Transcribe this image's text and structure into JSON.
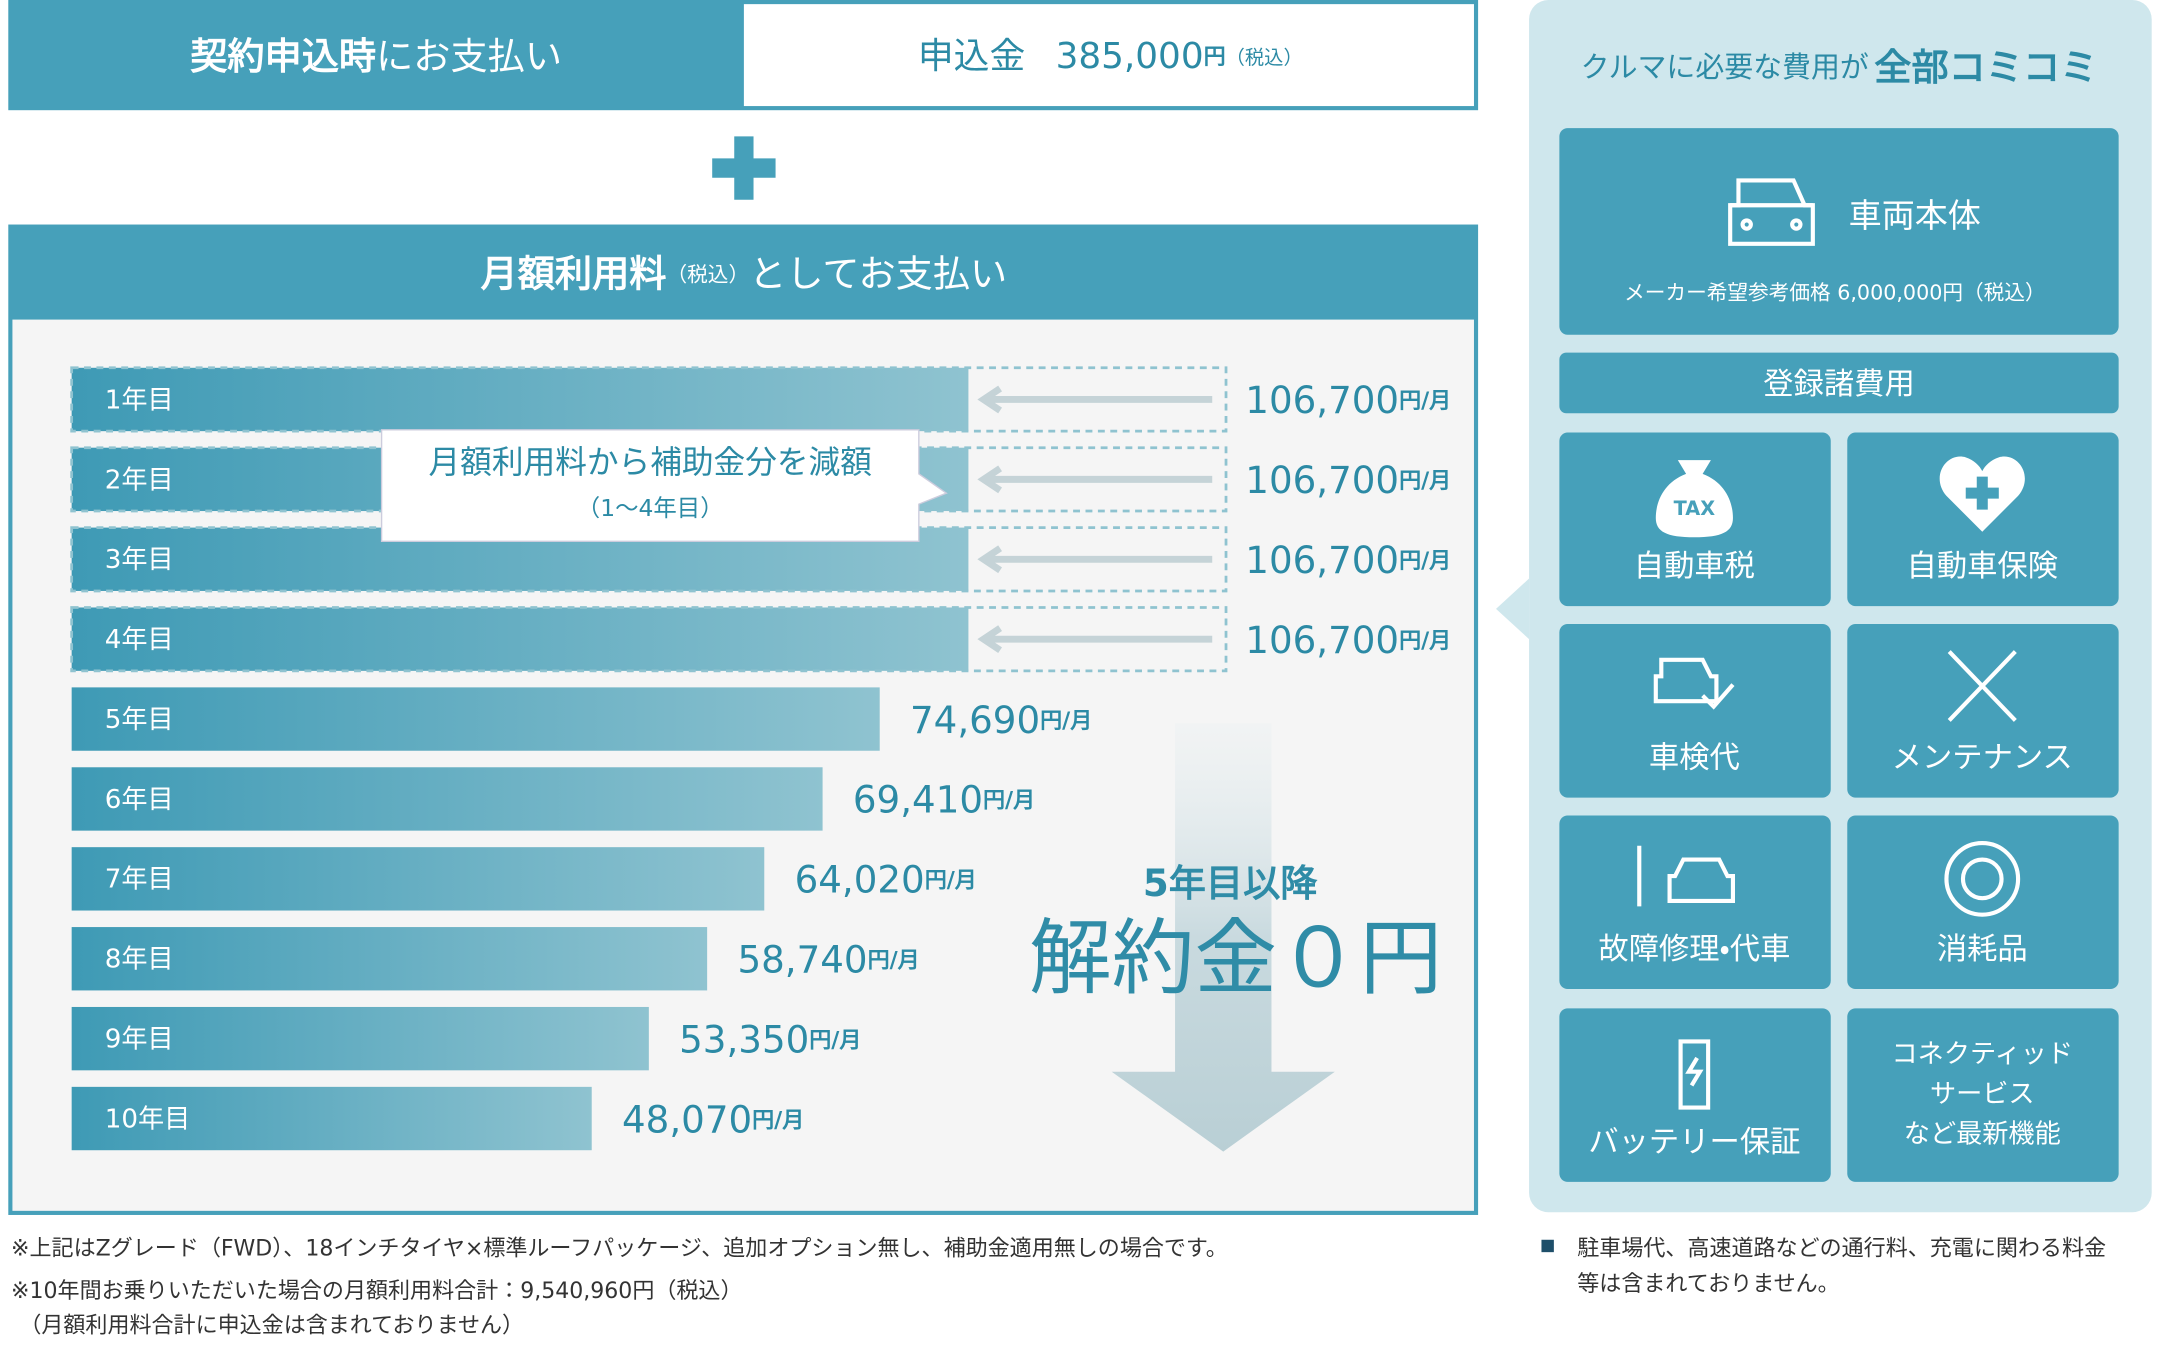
{
  "header": {
    "upfront_bold": "契約申込時",
    "upfront_rest": "にお支払い",
    "fee_label": "申込金",
    "fee_amount": "385,000",
    "fee_unit": "円",
    "fee_tax": "（税込）"
  },
  "monthly_header": {
    "bold": "月額利用料",
    "tax": "（税込）",
    "rest": "としてお支払い"
  },
  "chart_data": {
    "type": "bar",
    "orientation": "horizontal",
    "categories": [
      "1年目",
      "2年目",
      "3年目",
      "4年目",
      "5年目",
      "6年目",
      "7年目",
      "8年目",
      "9年目",
      "10年目"
    ],
    "values": [
      106700,
      106700,
      106700,
      106700,
      74690,
      69410,
      64020,
      58740,
      53350,
      48070
    ],
    "value_labels": [
      "106,700",
      "106,700",
      "106,700",
      "106,700",
      "74,690",
      "69,410",
      "64,020",
      "58,740",
      "53,350",
      "48,070"
    ],
    "unit": "円/月",
    "color_start": "#3e9ab5",
    "color_end": "#8fc3d0",
    "callout": {
      "text": "月額利用料から補助金分を減額",
      "sub": "（1〜4年目）"
    },
    "annotation_small": "5年目以降",
    "annotation_large": "解約金０円"
  },
  "included": {
    "title": "クルマに必要な費用が",
    "title_bold": "全部コミコミ",
    "vehicle": {
      "label": "車両本体",
      "note": "メーカー希望参考価格 6,000,000円（税込）"
    },
    "registration": "登録諸費用",
    "items": [
      "自動車税",
      "自動車保険",
      "車検代",
      "メンテナンス",
      "故障修理・代車",
      "消耗品",
      "バッテリー保証"
    ],
    "connected": [
      "コネクティッド",
      "サービス",
      "など最新機能"
    ],
    "tax_icon": "TAX"
  },
  "notes": [
    "※上記はZグレード（FWD）、18インチタイヤ×標準ルーフパッケージ、追加オプション無し、補助金適用無しの場合です。",
    "※10年間お乗りいただいた場合の月額利用料合計：9,540,960円（税込）",
    "（月額利用料合計に申込金は含まれておりません）"
  ],
  "right_note": [
    "駐車場代、高速道路などの通行料、充電に関わる料金",
    "等は含まれておりません。"
  ]
}
